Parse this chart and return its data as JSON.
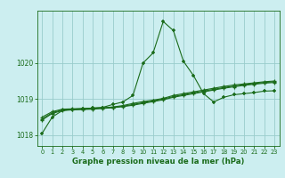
{
  "xlabel": "Graphe pression niveau de la mer (hPa)",
  "bg_color": "#cceef0",
  "grid_color": "#99cccc",
  "line_color": "#1a6b1a",
  "xlim": [
    -0.5,
    23.5
  ],
  "ylim": [
    1017.7,
    1021.45
  ],
  "yticks": [
    1018,
    1019,
    1020
  ],
  "xticks": [
    0,
    1,
    2,
    3,
    4,
    5,
    6,
    7,
    8,
    9,
    10,
    11,
    12,
    13,
    14,
    15,
    16,
    17,
    18,
    19,
    20,
    21,
    22,
    23
  ],
  "line1": [
    1018.05,
    1018.5,
    1018.68,
    1018.72,
    1018.73,
    1018.75,
    1018.77,
    1018.85,
    1018.92,
    1019.1,
    1020.0,
    1020.28,
    1021.15,
    1020.9,
    1020.05,
    1019.65,
    1019.15,
    1018.92,
    1019.05,
    1019.12,
    1019.15,
    1019.18,
    1019.22,
    1019.23
  ],
  "line2": [
    1018.5,
    1018.65,
    1018.72,
    1018.73,
    1018.74,
    1018.75,
    1018.76,
    1018.78,
    1018.82,
    1018.88,
    1018.93,
    1018.97,
    1019.02,
    1019.1,
    1019.15,
    1019.2,
    1019.25,
    1019.3,
    1019.35,
    1019.39,
    1019.42,
    1019.45,
    1019.48,
    1019.5
  ],
  "line3": [
    1018.45,
    1018.62,
    1018.7,
    1018.71,
    1018.72,
    1018.73,
    1018.75,
    1018.77,
    1018.8,
    1018.85,
    1018.9,
    1018.95,
    1019.0,
    1019.07,
    1019.12,
    1019.17,
    1019.22,
    1019.27,
    1019.32,
    1019.36,
    1019.4,
    1019.43,
    1019.46,
    1019.48
  ],
  "line4": [
    1018.42,
    1018.6,
    1018.68,
    1018.7,
    1018.71,
    1018.72,
    1018.74,
    1018.76,
    1018.79,
    1018.83,
    1018.88,
    1018.93,
    1018.98,
    1019.05,
    1019.1,
    1019.15,
    1019.2,
    1019.25,
    1019.3,
    1019.34,
    1019.38,
    1019.41,
    1019.44,
    1019.46
  ]
}
